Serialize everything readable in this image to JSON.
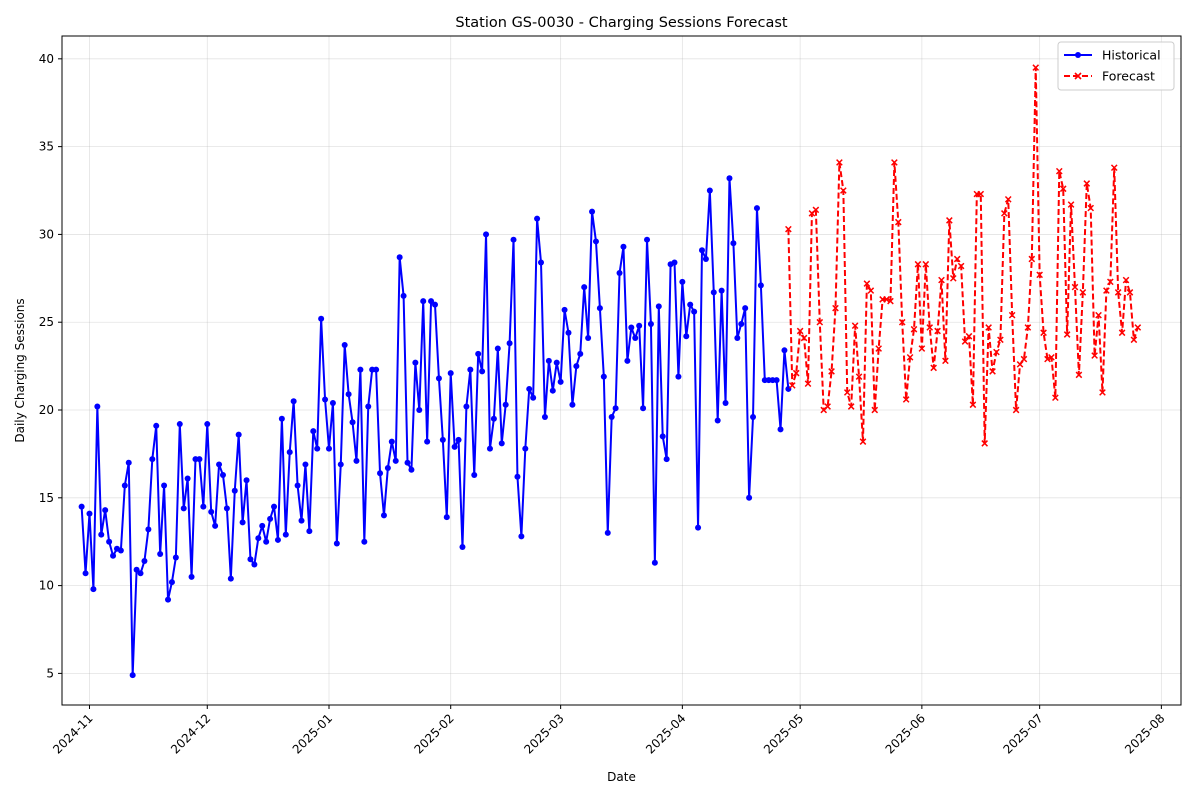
{
  "chart_data": {
    "type": "line",
    "title": "Station GS-0030 - Charging Sessions Forecast",
    "xlabel": "Date",
    "ylabel": "Daily Charging Sessions",
    "xlim": [
      "2024-10-25",
      "2025-08-06"
    ],
    "ylim": [
      3.2,
      41.3
    ],
    "x_ticks": [
      "2024-11",
      "2024-12",
      "2025-01",
      "2025-02",
      "2025-03",
      "2025-04",
      "2025-05",
      "2025-06",
      "2025-07",
      "2025-08"
    ],
    "y_ticks": [
      5,
      10,
      15,
      20,
      25,
      30,
      35,
      40
    ],
    "grid": true,
    "legend_position": "top-right",
    "series": [
      {
        "name": "Historical",
        "color": "#0000ff",
        "style": "solid",
        "marker": "circle",
        "start_date": "2024-10-30",
        "values": [
          14.5,
          10.7,
          14.1,
          9.8,
          20.2,
          12.9,
          14.3,
          12.5,
          11.7,
          12.1,
          12.0,
          15.7,
          17.0,
          4.9,
          10.9,
          10.7,
          11.4,
          13.2,
          17.2,
          19.1,
          11.8,
          15.7,
          9.2,
          10.2,
          11.6,
          19.2,
          14.4,
          16.1,
          10.5,
          17.2,
          17.2,
          14.5,
          19.2,
          14.2,
          13.4,
          16.9,
          16.3,
          14.4,
          10.4,
          15.4,
          18.6,
          13.6,
          16.0,
          11.5,
          11.2,
          12.7,
          13.4,
          12.5,
          13.8,
          14.5,
          12.6,
          19.5,
          12.9,
          17.6,
          20.5,
          15.7,
          13.7,
          16.9,
          13.1,
          18.8,
          17.8,
          25.2,
          20.6,
          17.8,
          20.4,
          12.4,
          16.9,
          23.7,
          20.9,
          19.3,
          17.1,
          22.3,
          12.5,
          20.2,
          22.3,
          22.3,
          16.4,
          14.0,
          16.7,
          18.2,
          17.1,
          28.7,
          26.5,
          17.0,
          16.6,
          22.7,
          20.0,
          26.2,
          18.2,
          26.2,
          26.0,
          21.8,
          18.3,
          13.9,
          22.1,
          17.9,
          18.3,
          12.2,
          20.2,
          22.3,
          16.3,
          23.2,
          22.2,
          30.0,
          17.8,
          19.5,
          23.5,
          18.1,
          20.3,
          23.8,
          29.7,
          16.2,
          12.8,
          17.8,
          21.2,
          20.7,
          30.9,
          28.4,
          19.6,
          22.8,
          21.1,
          22.7,
          21.6,
          25.7,
          24.4,
          20.3,
          22.5,
          23.2,
          27.0,
          24.1,
          31.3,
          29.6,
          25.8,
          21.9,
          13.0,
          19.6,
          20.1,
          27.8,
          29.3,
          22.8,
          24.7,
          24.1,
          24.8,
          20.1,
          29.7,
          24.9,
          11.3,
          25.9,
          18.5,
          17.2,
          28.3,
          28.4,
          21.9,
          27.3,
          24.2,
          26.0,
          25.6,
          13.3,
          29.1,
          28.6,
          32.5,
          26.7,
          19.4,
          26.8,
          20.4,
          33.2,
          29.5,
          24.1,
          24.9,
          25.8,
          15.0,
          19.6,
          31.5,
          27.1,
          21.7,
          21.7,
          21.7,
          21.7,
          18.9,
          23.4,
          21.2
        ]
      },
      {
        "name": "Forecast",
        "color": "#ff0000",
        "style": "dashed",
        "marker": "x",
        "start_date": "2025-04-28",
        "values": [
          30.3,
          21.4,
          22.1,
          24.5,
          24.1,
          21.5,
          31.2,
          31.4,
          25.0,
          20.0,
          20.2,
          22.2,
          25.8,
          34.1,
          32.5,
          21.0,
          20.2,
          24.8,
          21.9,
          18.2,
          27.2,
          26.8,
          20.0,
          23.5,
          26.3,
          26.3,
          26.2,
          34.1,
          30.7,
          25.0,
          20.6,
          23.0,
          24.6,
          28.3,
          23.5,
          28.3,
          24.7,
          22.4,
          24.5,
          27.4,
          22.8,
          30.8,
          27.5,
          28.6,
          28.2,
          23.9,
          24.2,
          20.3,
          32.3,
          32.3,
          18.1,
          24.7,
          22.2,
          23.3,
          24.0,
          31.2,
          32.0,
          25.4,
          20.0,
          22.6,
          22.9,
          24.7,
          28.6,
          39.5,
          27.7,
          24.4,
          22.9,
          23.0,
          20.7,
          33.6,
          32.6,
          24.3,
          31.7,
          27.0,
          22.0,
          26.7,
          32.9,
          31.5,
          23.1,
          25.4,
          21.0,
          26.8,
          27.3,
          33.8,
          26.7,
          24.4,
          27.4,
          26.7,
          24.0,
          24.7
        ]
      }
    ]
  }
}
